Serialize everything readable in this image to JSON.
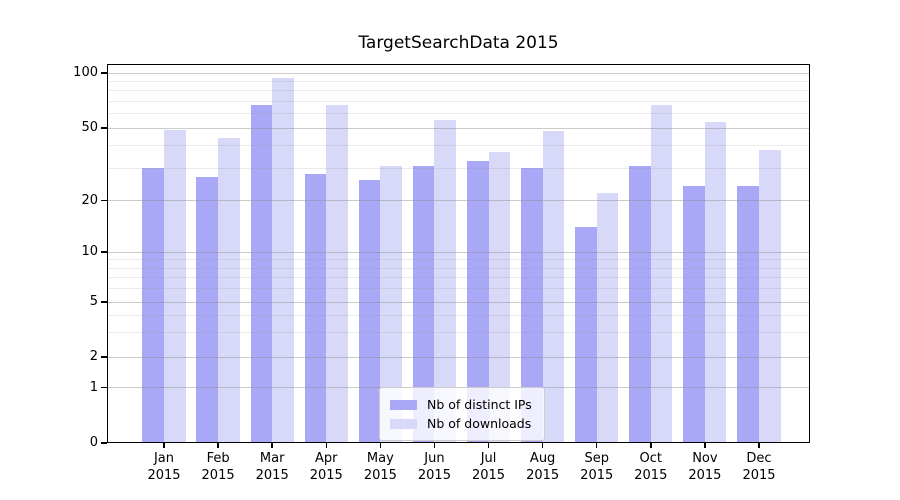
{
  "title": "TargetSearchData 2015",
  "colors": {
    "distinct_ips": "#a8a8f7",
    "downloads": "#d8d8f9",
    "grid_major": "#d9d9d9",
    "grid_minor": "#ececec",
    "axis": "#000000"
  },
  "legend": {
    "items": [
      {
        "label": "Nb of distinct IPs",
        "series": "distinct_ips"
      },
      {
        "label": "Nb of downloads",
        "series": "downloads"
      }
    ]
  },
  "y_axis": {
    "tick_values": [
      100,
      50,
      20,
      10,
      5,
      2,
      1,
      0
    ]
  },
  "chart_data": {
    "type": "bar",
    "title": "TargetSearchData 2015",
    "categories": [
      "Jan",
      "Feb",
      "Mar",
      "Apr",
      "May",
      "Jun",
      "Jul",
      "Aug",
      "Sep",
      "Oct",
      "Nov",
      "Dec"
    ],
    "year_label": "2015",
    "series": [
      {
        "name": "Nb of distinct IPs",
        "color": "#a8a8f7",
        "values": [
          30,
          27,
          67,
          28,
          26,
          31,
          33,
          30,
          14,
          31,
          24,
          24
        ]
      },
      {
        "name": "Nb of downloads",
        "color": "#d8d8f9",
        "values": [
          49,
          44,
          94,
          67,
          31,
          55,
          37,
          48,
          22,
          67,
          54,
          38
        ]
      }
    ],
    "xlabel": "",
    "ylabel": "",
    "yscale": "log-like (ticks 0,1,2,5,10,20,50,100)",
    "ylim": [
      0,
      110
    ],
    "grid": "horizontal major + minor, drawn over bars",
    "legend_position": "inside lower-center"
  }
}
